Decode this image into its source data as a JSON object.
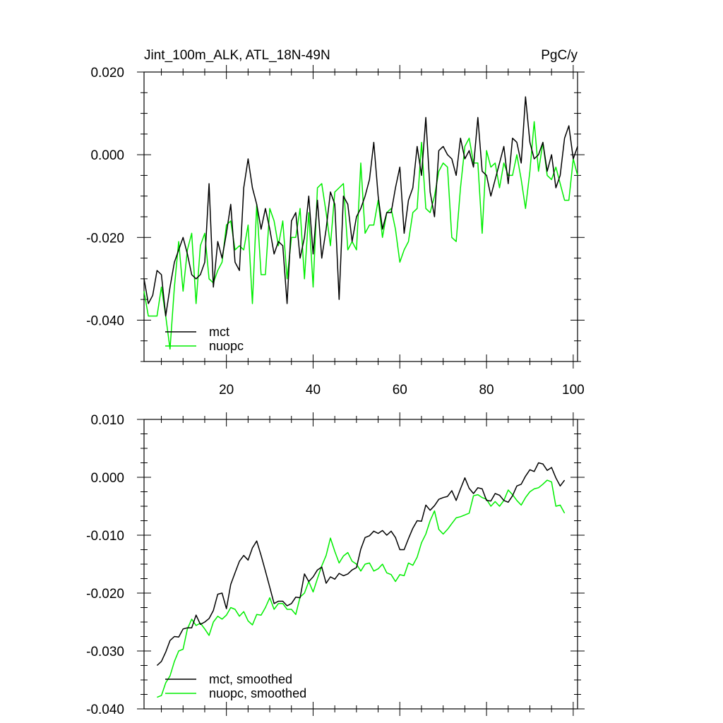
{
  "chart_data": [
    {
      "type": "line",
      "title": "Jint_100m_ALK, ATL_18N-49N",
      "units": "PgC/y",
      "xlim": [
        1,
        101
      ],
      "ylim": [
        -0.05,
        0.02
      ],
      "xticks": [
        20,
        40,
        60,
        80,
        100
      ],
      "xtick_labels": [
        "20",
        "40",
        "60",
        "80",
        "100"
      ],
      "yticks": [
        0.02,
        0.0,
        -0.02,
        -0.04
      ],
      "ytick_labels": [
        "0.020",
        "0.000",
        "-0.020",
        "-0.040"
      ],
      "legend": [
        "mct",
        "nuopc"
      ],
      "series": [
        {
          "name": "mct",
          "color": "#000000",
          "x": [
            1,
            2,
            3,
            4,
            5,
            6,
            7,
            8,
            9,
            10,
            11,
            12,
            13,
            14,
            15,
            16,
            17,
            18,
            19,
            20,
            21,
            22,
            23,
            24,
            25,
            26,
            27,
            28,
            29,
            30,
            31,
            32,
            33,
            34,
            35,
            36,
            37,
            38,
            39,
            40,
            41,
            42,
            43,
            44,
            45,
            46,
            47,
            48,
            49,
            50,
            51,
            52,
            53,
            54,
            55,
            56,
            57,
            58,
            59,
            60,
            61,
            62,
            63,
            64,
            65,
            66,
            67,
            68,
            69,
            70,
            71,
            72,
            73,
            74,
            75,
            76,
            77,
            78,
            79,
            80,
            81,
            82,
            83,
            84,
            85,
            86,
            87,
            88,
            89,
            90,
            91,
            92,
            93,
            94,
            95,
            96,
            97,
            98,
            99,
            100,
            101
          ],
          "values": [
            -0.03,
            -0.036,
            -0.034,
            -0.028,
            -0.029,
            -0.039,
            -0.032,
            -0.026,
            -0.023,
            -0.02,
            -0.024,
            -0.029,
            -0.03,
            -0.029,
            -0.026,
            -0.007,
            -0.032,
            -0.021,
            -0.025,
            -0.019,
            -0.012,
            -0.026,
            -0.028,
            -0.008,
            -0.001,
            -0.008,
            -0.012,
            -0.018,
            -0.013,
            -0.018,
            -0.024,
            -0.021,
            -0.022,
            -0.036,
            -0.016,
            -0.014,
            -0.025,
            -0.02,
            -0.01,
            -0.024,
            -0.011,
            -0.025,
            -0.018,
            -0.009,
            -0.012,
            -0.035,
            -0.01,
            -0.012,
            -0.021,
            -0.015,
            -0.013,
            -0.01,
            -0.006,
            0.003,
            -0.01,
            -0.018,
            -0.014,
            -0.014,
            -0.008,
            -0.003,
            -0.019,
            -0.011,
            -0.008,
            0.002,
            -0.005,
            0.009,
            -0.009,
            -0.015,
            0.001,
            0.002,
            0.0,
            -0.001,
            -0.005,
            0.004,
            -0.001,
            0.001,
            -0.003,
            0.009,
            -0.004,
            -0.005,
            -0.01,
            -0.006,
            -0.002,
            0.002,
            -0.007,
            0.004,
            0.003,
            -0.002,
            0.014,
            0.003,
            -0.001,
            0.0,
            0.003,
            -0.004,
            0.0,
            -0.008,
            -0.005,
            0.004,
            0.007,
            -0.001,
            0.002
          ]
        },
        {
          "name": "nuopc",
          "color": "#00ee00",
          "x": [
            1,
            2,
            3,
            4,
            5,
            6,
            7,
            8,
            9,
            10,
            11,
            12,
            13,
            14,
            15,
            16,
            17,
            18,
            19,
            20,
            21,
            22,
            23,
            24,
            25,
            26,
            27,
            28,
            29,
            30,
            31,
            32,
            33,
            34,
            35,
            36,
            37,
            38,
            39,
            40,
            41,
            42,
            43,
            44,
            45,
            46,
            47,
            48,
            49,
            50,
            51,
            52,
            53,
            54,
            55,
            56,
            57,
            58,
            59,
            60,
            61,
            62,
            63,
            64,
            65,
            66,
            67,
            68,
            69,
            70,
            71,
            72,
            73,
            74,
            75,
            76,
            77,
            78,
            79,
            80,
            81,
            82,
            83,
            84,
            85,
            86,
            87,
            88,
            89,
            90,
            91,
            92,
            93,
            94,
            95,
            96,
            97,
            98,
            99,
            100,
            101
          ],
          "values": [
            -0.033,
            -0.039,
            -0.039,
            -0.039,
            -0.032,
            -0.039,
            -0.047,
            -0.032,
            -0.021,
            -0.033,
            -0.023,
            -0.019,
            -0.036,
            -0.022,
            -0.019,
            -0.03,
            -0.031,
            -0.028,
            -0.026,
            -0.017,
            -0.016,
            -0.023,
            -0.022,
            -0.023,
            -0.017,
            -0.036,
            -0.012,
            -0.029,
            -0.029,
            -0.013,
            -0.016,
            -0.022,
            -0.016,
            -0.03,
            -0.02,
            -0.02,
            -0.013,
            -0.03,
            -0.014,
            -0.032,
            -0.008,
            -0.007,
            -0.014,
            -0.022,
            -0.009,
            -0.008,
            -0.007,
            -0.023,
            -0.021,
            -0.023,
            -0.002,
            -0.019,
            -0.017,
            -0.017,
            -0.011,
            -0.02,
            -0.014,
            -0.013,
            -0.018,
            -0.026,
            -0.023,
            -0.021,
            -0.014,
            -0.013,
            0.003,
            -0.013,
            -0.014,
            -0.01,
            -0.004,
            -0.002,
            -0.003,
            -0.02,
            -0.021,
            -0.008,
            0.002,
            0.004,
            -0.002,
            -0.002,
            -0.019,
            0.001,
            -0.003,
            -0.002,
            -0.008,
            -0.002,
            -0.005,
            -0.005,
            0.0,
            -0.006,
            -0.013,
            -0.004,
            0.008,
            -0.004,
            0.003,
            -0.005,
            -0.006,
            -0.003,
            -0.007,
            -0.011,
            -0.011,
            -0.001,
            -0.005
          ]
        }
      ]
    },
    {
      "type": "line",
      "title": "",
      "xlim": [
        1,
        101
      ],
      "ylim": [
        -0.04,
        0.01
      ],
      "xticks": [
        20,
        40,
        60,
        80,
        100
      ],
      "yticks": [
        0.01,
        0.0,
        -0.01,
        -0.02,
        -0.03,
        -0.04
      ],
      "ytick_labels": [
        "0.010",
        "0.000",
        "-0.010",
        "-0.020",
        "-0.030",
        "-0.040"
      ],
      "legend": [
        "mct, smoothed",
        "nuopc, smoothed"
      ],
      "series": [
        {
          "name": "mct, smoothed",
          "color": "#000000",
          "x": [
            4,
            5,
            6,
            7,
            8,
            9,
            10,
            11,
            12,
            13,
            14,
            15,
            16,
            17,
            18,
            19,
            20,
            21,
            22,
            23,
            24,
            25,
            26,
            27,
            28,
            29,
            30,
            31,
            32,
            33,
            34,
            35,
            36,
            37,
            38,
            39,
            40,
            41,
            42,
            43,
            44,
            45,
            46,
            47,
            48,
            49,
            50,
            51,
            52,
            53,
            54,
            55,
            56,
            57,
            58,
            59,
            60,
            61,
            62,
            63,
            64,
            65,
            66,
            67,
            68,
            69,
            70,
            71,
            72,
            73,
            74,
            75,
            76,
            77,
            78,
            79,
            80,
            81,
            82,
            83,
            84,
            85,
            86,
            87,
            88,
            89,
            90,
            91,
            92,
            93,
            94,
            95,
            96,
            97,
            98
          ],
          "values": [
            -0.0325,
            -0.0318,
            -0.0302,
            -0.0282,
            -0.0275,
            -0.0276,
            -0.0262,
            -0.026,
            -0.026,
            -0.0238,
            -0.0254,
            -0.025,
            -0.0244,
            -0.023,
            -0.0202,
            -0.02,
            -0.0227,
            -0.0185,
            -0.0165,
            -0.0145,
            -0.0135,
            -0.0143,
            -0.0122,
            -0.011,
            -0.0135,
            -0.0162,
            -0.019,
            -0.0218,
            -0.0214,
            -0.0214,
            -0.0222,
            -0.0218,
            -0.0207,
            -0.0208,
            -0.0167,
            -0.018,
            -0.0172,
            -0.016,
            -0.0155,
            -0.0183,
            -0.0172,
            -0.0176,
            -0.0166,
            -0.017,
            -0.0167,
            -0.016,
            -0.0156,
            -0.0124,
            -0.0104,
            -0.0101,
            -0.0093,
            -0.0097,
            -0.0092,
            -0.01,
            -0.0093,
            -0.0104,
            -0.0125,
            -0.0125,
            -0.0106,
            -0.0088,
            -0.0075,
            -0.0076,
            -0.0048,
            -0.0057,
            -0.0049,
            -0.0038,
            -0.0035,
            -0.0033,
            -0.0023,
            -0.004,
            -0.002,
            -0.0001,
            -0.0019,
            -0.0028,
            -0.0018,
            -0.002,
            -0.004,
            -0.0041,
            -0.0028,
            -0.0031,
            -0.004,
            -0.0043,
            -0.0032,
            -0.0015,
            -0.0012,
            0.0002,
            0.0013,
            0.001,
            0.0025,
            0.0023,
            0.0012,
            0.0017,
            -0.0001,
            -0.0015,
            -0.0005
          ]
        },
        {
          "name": "nuopc, smoothed",
          "color": "#00ee00",
          "x": [
            4,
            5,
            6,
            7,
            8,
            9,
            10,
            11,
            12,
            13,
            14,
            15,
            16,
            17,
            18,
            19,
            20,
            21,
            22,
            23,
            24,
            25,
            26,
            27,
            28,
            29,
            30,
            31,
            32,
            33,
            34,
            35,
            36,
            37,
            38,
            39,
            40,
            41,
            42,
            43,
            44,
            45,
            46,
            47,
            48,
            49,
            50,
            51,
            52,
            53,
            54,
            55,
            56,
            57,
            58,
            59,
            60,
            61,
            62,
            63,
            64,
            65,
            66,
            67,
            68,
            69,
            70,
            71,
            72,
            73,
            74,
            75,
            76,
            77,
            78,
            79,
            80,
            81,
            82,
            83,
            84,
            85,
            86,
            87,
            88,
            89,
            90,
            91,
            92,
            93,
            94,
            95,
            96,
            97,
            98
          ],
          "values": [
            -0.038,
            -0.0377,
            -0.0355,
            -0.0343,
            -0.0318,
            -0.03,
            -0.0297,
            -0.0262,
            -0.0245,
            -0.0256,
            -0.0252,
            -0.0262,
            -0.0273,
            -0.025,
            -0.024,
            -0.0245,
            -0.0238,
            -0.0225,
            -0.0228,
            -0.024,
            -0.0232,
            -0.0248,
            -0.0255,
            -0.0237,
            -0.0238,
            -0.0225,
            -0.0208,
            -0.0228,
            -0.0218,
            -0.0218,
            -0.0228,
            -0.0228,
            -0.0237,
            -0.0207,
            -0.02,
            -0.018,
            -0.0198,
            -0.0175,
            -0.0153,
            -0.0135,
            -0.0105,
            -0.0128,
            -0.0148,
            -0.0136,
            -0.013,
            -0.0145,
            -0.015,
            -0.0162,
            -0.015,
            -0.0148,
            -0.0162,
            -0.0158,
            -0.015,
            -0.0165,
            -0.0168,
            -0.018,
            -0.0168,
            -0.017,
            -0.0148,
            -0.0152,
            -0.0138,
            -0.0113,
            -0.0098,
            -0.0075,
            -0.0058,
            -0.009,
            -0.0098,
            -0.009,
            -0.008,
            -0.007,
            -0.0068,
            -0.0065,
            -0.0062,
            -0.0032,
            -0.003,
            -0.0035,
            -0.0038,
            -0.005,
            -0.0042,
            -0.005,
            -0.004,
            -0.0022,
            -0.003,
            -0.004,
            -0.0048,
            -0.0035,
            -0.0025,
            -0.002,
            -0.0018,
            -0.0012,
            -0.0005,
            -0.0008,
            -0.005,
            -0.0048,
            -0.0062
          ]
        }
      ]
    }
  ]
}
